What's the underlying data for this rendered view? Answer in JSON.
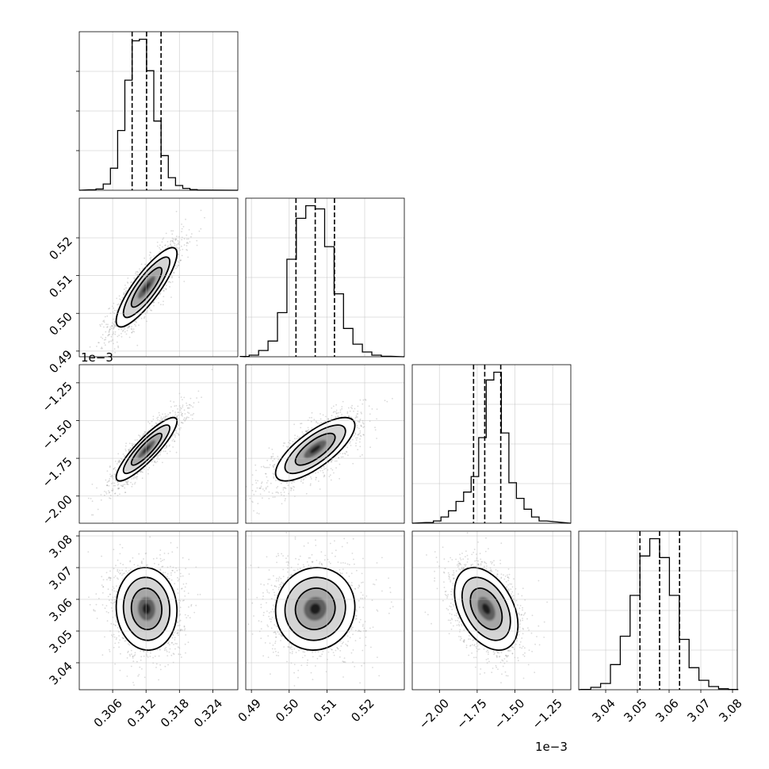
{
  "chart_data": {
    "type": "corner",
    "parameters": [
      {
        "name": "",
        "range": [
          0.3,
          0.3285
        ],
        "ticks": [
          0.306,
          0.312,
          0.318,
          0.324
        ],
        "tick_labels": [
          "0.306",
          "0.312",
          "0.318",
          "0.324"
        ],
        "quantiles": [
          0.3095,
          0.3121,
          0.3147
        ],
        "mean": 0.3121,
        "sd": 0.0026
      },
      {
        "name": "",
        "range": [
          0.4885,
          0.5305
        ],
        "ticks": [
          0.49,
          0.5,
          0.51,
          0.52
        ],
        "tick_labels": [
          "0.49",
          "0.50",
          "0.51",
          "0.52"
        ],
        "quantiles": [
          0.5018,
          0.5069,
          0.512
        ],
        "mean": 0.5069,
        "sd": 0.005
      },
      {
        "name": "",
        "scale_label": "1e−3",
        "range": [
          -2.18,
          -1.13
        ],
        "ticks": [
          -2.0,
          -1.75,
          -1.5,
          -1.25
        ],
        "tick_labels": [
          "−2.00",
          "−1.75",
          "−1.50",
          "−1.25"
        ],
        "quantiles": [
          -1.774,
          -1.7,
          -1.594
        ],
        "mean": -1.69,
        "sd": 0.1
      },
      {
        "name": "",
        "range": [
          3.0315,
          3.0815
        ],
        "ticks": [
          3.04,
          3.05,
          3.06,
          3.07,
          3.08
        ],
        "tick_labels": [
          "3.04",
          "3.05",
          "3.06",
          "3.07",
          "3.08"
        ],
        "quantiles": [
          3.0508,
          3.057,
          3.0633
        ],
        "mean": 3.057,
        "sd": 0.0062
      }
    ],
    "correlations": [
      [
        1.0,
        0.85,
        0.88,
        -0.05
      ],
      [
        0.85,
        1.0,
        0.75,
        0.05
      ],
      [
        0.88,
        0.75,
        1.0,
        -0.4
      ],
      [
        -0.05,
        0.05,
        -0.4,
        1.0
      ]
    ],
    "histograms": [
      [
        0.3,
        0.8,
        4.0,
        14.0,
        38.0,
        70.0,
        95.0,
        96.0,
        76.0,
        44.0,
        22.0,
        8.0,
        3.0,
        1.2,
        0.4,
        0.1
      ],
      [
        0.2,
        1.0,
        4.0,
        10.0,
        28.0,
        62.0,
        88.0,
        96.0,
        94.0,
        70.0,
        40.0,
        18.0,
        8.0,
        3.0,
        1.0,
        0.3
      ],
      [
        0.4,
        1.5,
        4.0,
        8.0,
        14.0,
        20.0,
        30.0,
        55.0,
        92.0,
        97.0,
        58.0,
        26.0,
        16.0,
        9.0,
        4.0,
        1.5
      ],
      [
        0.2,
        1.5,
        4.0,
        16.0,
        34.0,
        60.0,
        85.0,
        96.0,
        84.0,
        60.0,
        32.0,
        14.0,
        6.0,
        2.0,
        0.6,
        0.2
      ]
    ],
    "grid": true,
    "histogram_style": "step",
    "quantile_lines": "dashed"
  }
}
